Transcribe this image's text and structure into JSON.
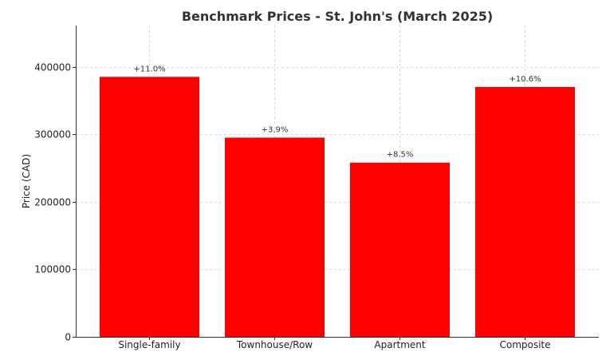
{
  "chart_data": {
    "type": "bar",
    "title": "Benchmark Prices - St. John's (March 2025)",
    "xlabel": "",
    "ylabel": "Price (CAD)",
    "categories": [
      "Single-family",
      "Townhouse/Row",
      "Apartment",
      "Composite"
    ],
    "values": [
      385000,
      295000,
      258000,
      370000
    ],
    "bar_labels": [
      "+11.0%",
      "+3.9%",
      "+8.5%",
      "+10.6%"
    ],
    "yticks": [
      0,
      100000,
      200000,
      300000,
      400000
    ],
    "ytick_labels": [
      "0",
      "100000",
      "200000",
      "300000",
      "400000"
    ],
    "ylim": [
      0,
      461000
    ],
    "grid": true,
    "bar_color": "#ff0000"
  }
}
